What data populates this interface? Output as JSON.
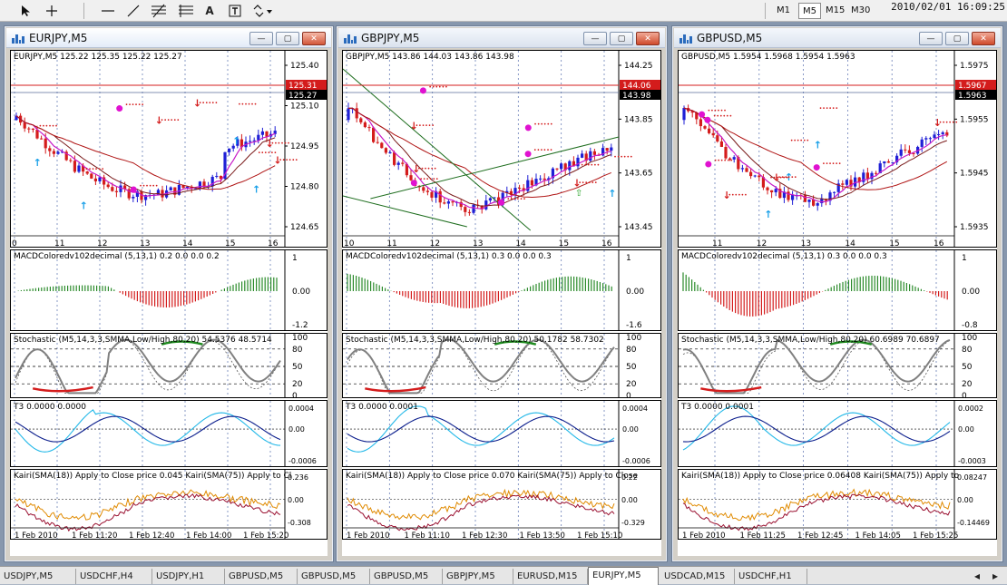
{
  "toolbar": {
    "icons": [
      "cursor-icon",
      "crosshair-icon",
      "hline-icon",
      "trendline-icon",
      "fibo-icon",
      "fibo-fan-icon",
      "text-icon",
      "label-icon",
      "shapes-icon"
    ],
    "text_tool": "A",
    "timeframes": [
      "M1",
      "M5",
      "M15",
      "M30"
    ],
    "active_timeframe": "M5",
    "clock": "2010/02/01 16:09:25"
  },
  "windows": [
    {
      "title": "EURJPY,M5",
      "active": true,
      "quote": "EURJPY,M5  125.22 125.35 125.22 125.27",
      "price_ticks": [
        "125.40",
        "125.10",
        "124.95",
        "124.80",
        "124.65"
      ],
      "price_mark_red": "125.31",
      "price_mark_black": "125.27",
      "hour_labels": [
        "0",
        "11",
        "12",
        "13",
        "14",
        "15",
        "16"
      ],
      "macd_label": "MACDColoredv102decimal (5,13,1) 0.2 0.0 0.0 0.2",
      "macd_ticks": [
        "1",
        "0.00",
        "-1.2"
      ],
      "stoch_label": "Stochastic (M5,14,3,3,SMMA,Low/High,80,20) 54.5376 48.5714",
      "stoch_ticks": [
        "100",
        "80",
        "50",
        "20",
        "0"
      ],
      "t3_label": "T3 0.0000 0.0000",
      "t3_ticks": [
        "0.0004",
        "0.00",
        "-0.0006"
      ],
      "kairi_label": "Kairi(SMA(18)) Apply to Close price 0.045  Kairi(SMA(75)) Apply to Cl",
      "kairi_ticks": [
        "0.236",
        "0.00",
        "-0.308"
      ],
      "date_labels": [
        "1 Feb 2010",
        "1 Feb 11:20",
        "1 Feb 12:40",
        "1 Feb 14:00",
        "1 Feb 15:20"
      ]
    },
    {
      "title": "GBPJPY,M5",
      "active": false,
      "quote": "GBPJPY,M5  143.86 144.03 143.86 143.98",
      "price_ticks": [
        "144.25",
        "143.85",
        "143.65",
        "143.45"
      ],
      "price_mark_red": "144.06",
      "price_mark_black": "143.98",
      "hour_labels": [
        "10",
        "11",
        "12",
        "13",
        "14",
        "15",
        "16"
      ],
      "macd_label": "MACDColoredv102decimal (5,13,1) 0.3 0.0 0.0 0.3",
      "macd_ticks": [
        "1",
        "0.00",
        "-1.6"
      ],
      "stoch_label": "Stochastic (M5,14,3,3,SMMA,Low/High,80,20) 50.1782 58.7302",
      "stoch_ticks": [
        "100",
        "80",
        "50",
        "20",
        "0"
      ],
      "t3_label": "T3 0.0000 0.0001",
      "t3_ticks": [
        "0.0004",
        "0.00",
        "-0.0006"
      ],
      "kairi_label": "Kairi(SMA(18)) Apply to Close price 0.070  Kairi(SMA(75)) Apply to Close",
      "kairi_ticks": [
        "0.22",
        "0.00",
        "-0.329"
      ],
      "date_labels": [
        "1 Feb 2010",
        "1 Feb 11:10",
        "1 Feb 12:30",
        "1 Feb 13:50",
        "1 Feb 15:10"
      ]
    },
    {
      "title": "GBPUSD,M5",
      "active": false,
      "quote": "GBPUSD,M5  1.5954 1.5968 1.5954 1.5963",
      "price_ticks": [
        "1.5975",
        "1.5955",
        "1.5945",
        "1.5935"
      ],
      "price_mark_red": "1.5967",
      "price_mark_black": "1.5963",
      "hour_labels": [
        "11",
        "12",
        "13",
        "14",
        "15",
        "16"
      ],
      "macd_label": "MACDColoredv102decimal (5,13,1) 0.3 0.0 0.0 0.3",
      "macd_ticks": [
        "1",
        "0.00",
        "-0.8"
      ],
      "stoch_label": "Stochastic (M5,14,3,3,SMMA,Low/High,80,20) 60.6989 70.6897",
      "stoch_ticks": [
        "100",
        "80",
        "50",
        "20",
        "0"
      ],
      "t3_label": "T3 0.0000 0.0001",
      "t3_ticks": [
        "0.0002",
        "0.00",
        "-0.0003"
      ],
      "kairi_label": "Kairi(SMA(18)) Apply to Close price 0.06408  Kairi(SMA(75)) Apply to",
      "kairi_ticks": [
        "0.08247",
        "0.00",
        "-0.14469"
      ],
      "date_labels": [
        "1 Feb 2010",
        "1 Feb 11:25",
        "1 Feb 12:45",
        "1 Feb 14:05",
        "1 Feb 15:25"
      ]
    }
  ],
  "window_buttons": {
    "minimize": "—",
    "restore": "▢",
    "close": "✕"
  },
  "tabs": [
    "USDJPY,M5",
    "USDCHF,H4",
    "USDJPY,H1",
    "GBPUSD,M5",
    "GBPUSD,M5",
    "GBPUSD,M5",
    "GBPJPY,M5",
    "EURUSD,M15",
    "EURJPY,M5",
    "USDCAD,M15",
    "USDCHF,H1"
  ],
  "active_tab": "EURJPY,M5",
  "colors": {
    "bull": "#1f1fd6",
    "bear": "#d41c1c",
    "ma_red": "#b01515",
    "ma_purple": "#c71ac7",
    "ma_green": "#1f6e1f",
    "stoch_main": "#808080",
    "stoch_red": "#d41c1c",
    "stoch_green": "#1f8a1f",
    "t3_blue": "#0a1d8c",
    "t3_cyan": "#22b8e8",
    "kairi_orange": "#e08a00",
    "kairi_maroon": "#9a1030"
  }
}
